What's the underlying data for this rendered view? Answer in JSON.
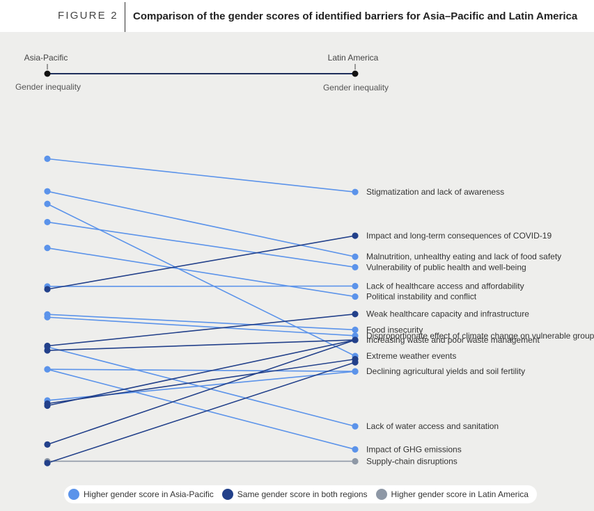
{
  "figure_label": "FIGURE 2",
  "title": "Comparison of the gender scores of identified barriers for Asia–Pacific and Latin America",
  "colors": {
    "higher_asia": "#5b93ea",
    "same": "#22408a",
    "higher_latam": "#8e98a6"
  },
  "chart_data": {
    "type": "slope",
    "left_axis": {
      "region": "Asia-Pacific",
      "label": "Gender inequality"
    },
    "right_axis": {
      "region": "Latin America",
      "label": "Gender inequality"
    },
    "value_direction": "higher gender inequality score plotted higher",
    "series": [
      {
        "name": "Stigmatization and lack of awareness",
        "group": "higher_asia",
        "left": 0.87,
        "right": 0.775,
        "show_label": true
      },
      {
        "name": "Impact and long-term consequences of COVID-19",
        "group": "same",
        "left": 0.497,
        "right": 0.65,
        "show_label": true
      },
      {
        "name": "Malnutrition, unhealthy eating and lack of food safety",
        "group": "higher_asia",
        "left": 0.777,
        "right": 0.59,
        "show_label": true
      },
      {
        "name": "Vulnerability of public health and well-being",
        "group": "higher_asia",
        "left": 0.689,
        "right": 0.56,
        "show_label": true
      },
      {
        "name": "Lack of healthcare access and affordability",
        "group": "higher_asia",
        "left": 0.505,
        "right": 0.506,
        "show_label": true
      },
      {
        "name": "Political instability and conflict",
        "group": "higher_asia",
        "left": 0.615,
        "right": 0.476,
        "show_label": true
      },
      {
        "name": "Weak healthcare capacity and infrastructure",
        "group": "same",
        "left": 0.335,
        "right": 0.426,
        "show_label": true
      },
      {
        "name": "Increasing waste and poor waste management",
        "group": "same",
        "left": 0.322,
        "right": 0.352,
        "show_label": true
      },
      {
        "name": "Increasing waste and poor waste management",
        "group": "same",
        "left": 0.164,
        "right": 0.352,
        "show_label": false
      },
      {
        "name": "Increasing waste and poor waste management",
        "group": "same",
        "left": 0.053,
        "right": 0.352,
        "show_label": false
      },
      {
        "name": "Food insecurity",
        "group": "higher_asia",
        "left": 0.425,
        "right": 0.381,
        "show_label": true
      },
      {
        "name": "Disproportionate effect of climate change on vulnerable groups",
        "group": "higher_asia",
        "left": 0.417,
        "right": 0.364,
        "show_label": true
      },
      {
        "name": "Extreme weather events",
        "group": "higher_asia",
        "left": 0.741,
        "right": 0.306,
        "show_label": true
      },
      {
        "name": "Extreme weather events",
        "group": "same",
        "left": 0.17,
        "right": 0.297,
        "show_label": false
      },
      {
        "name": "Extreme weather events",
        "group": "same",
        "left": 0.0,
        "right": 0.288,
        "show_label": false
      },
      {
        "name": "Declining agricultural yields and soil fertility",
        "group": "higher_asia",
        "left": 0.268,
        "right": 0.262,
        "show_label": true
      },
      {
        "name": "Declining agricultural yields and soil fertility",
        "group": "higher_asia",
        "left": 0.179,
        "right": 0.262,
        "show_label": false
      },
      {
        "name": "Lack of water access and sanitation",
        "group": "higher_asia",
        "left": 0.332,
        "right": 0.105,
        "show_label": true
      },
      {
        "name": "Impact of GHG emissions",
        "group": "higher_asia",
        "left": 0.268,
        "right": 0.039,
        "show_label": true
      },
      {
        "name": "Supply-chain disruptions",
        "group": "higher_latam",
        "left": 0.005,
        "right": 0.005,
        "show_label": true
      }
    ],
    "legend": [
      {
        "label": "Higher gender score in Asia-Pacific",
        "group": "higher_asia"
      },
      {
        "label": "Same gender score in both regions",
        "group": "same"
      },
      {
        "label": "Higher gender score in Latin America",
        "group": "higher_latam"
      }
    ],
    "legend_position": "bottom"
  }
}
